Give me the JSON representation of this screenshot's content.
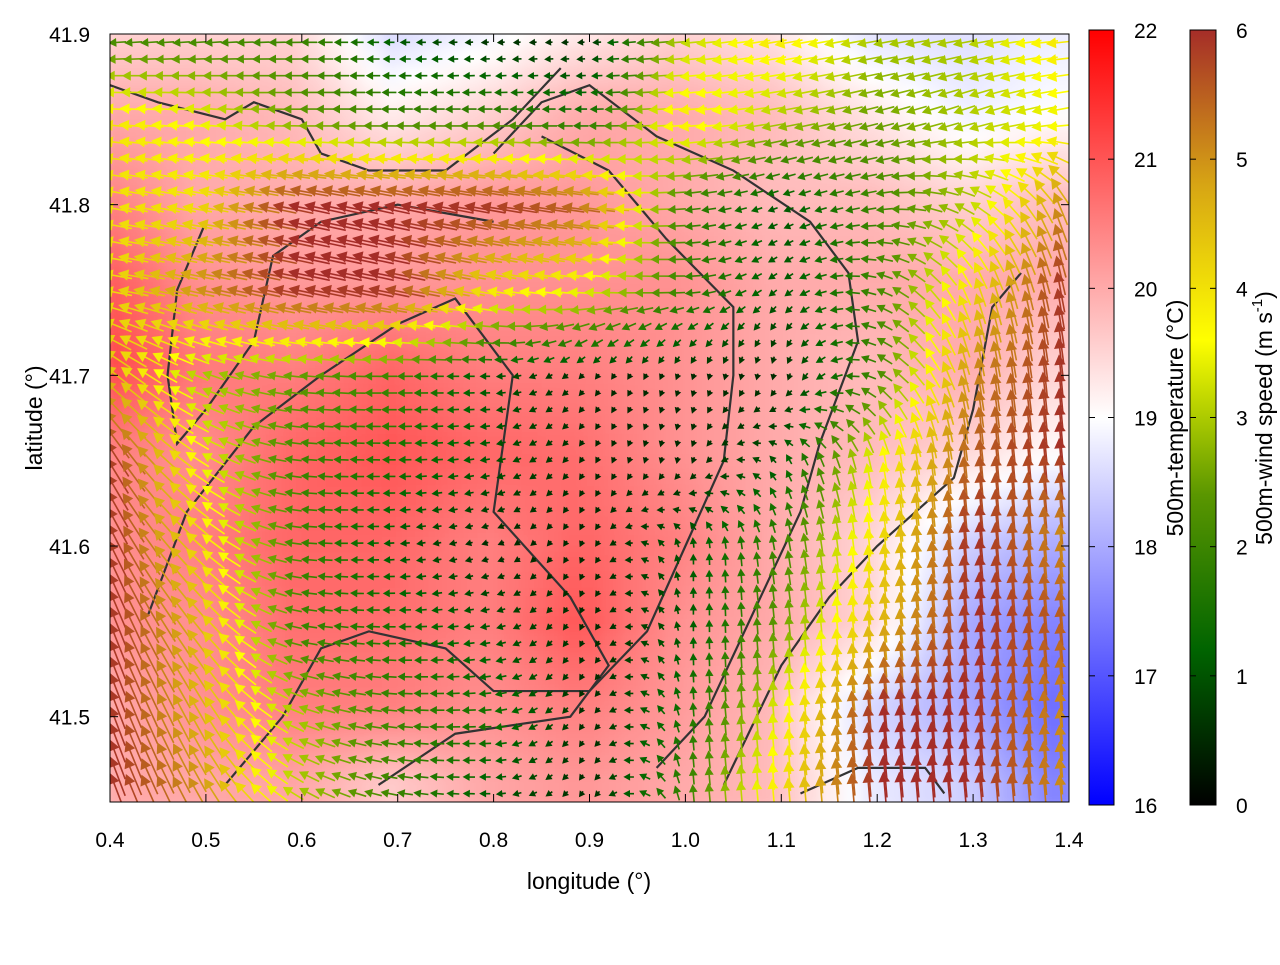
{
  "chart_data": {
    "type": "heatmap",
    "overlay": "vector-field-with-contours",
    "xlabel": "longitude (°)",
    "ylabel": "latitude (°)",
    "xlim": [
      0.4,
      1.4
    ],
    "ylim": [
      41.45,
      41.9
    ],
    "xticks": [
      "0.4",
      "0.5",
      "0.6",
      "0.7",
      "0.8",
      "0.9",
      "1.0",
      "1.1",
      "1.2",
      "1.3",
      "1.4"
    ],
    "yticks": [
      "41.5",
      "41.6",
      "41.7",
      "41.8",
      "41.9"
    ],
    "grid_lon": [
      0.4,
      0.5,
      0.6,
      0.7,
      0.8,
      0.9,
      1.0,
      1.1,
      1.2,
      1.3,
      1.4
    ],
    "grid_lat": [
      41.9,
      41.85,
      41.8,
      41.75,
      41.7,
      41.65,
      41.6,
      41.55,
      41.5,
      41.45
    ],
    "temperature": [
      [
        19.5,
        19.5,
        19.5,
        18.5,
        18.8,
        19.2,
        19.5,
        19.3,
        18.6,
        18.6,
        18.8
      ],
      [
        20.0,
        20.0,
        19.8,
        19.2,
        19.5,
        20.0,
        20.0,
        19.8,
        19.3,
        18.8,
        19.0
      ],
      [
        20.5,
        20.0,
        20.0,
        20.0,
        20.2,
        20.2,
        20.0,
        19.8,
        19.8,
        19.5,
        19.8
      ],
      [
        21.0,
        20.3,
        20.2,
        20.2,
        20.3,
        20.3,
        20.3,
        20.0,
        20.0,
        20.0,
        20.0
      ],
      [
        21.2,
        20.6,
        20.5,
        20.8,
        20.5,
        20.5,
        20.3,
        20.0,
        19.8,
        20.0,
        19.5
      ],
      [
        20.5,
        20.3,
        20.8,
        21.0,
        20.8,
        20.7,
        20.3,
        20.0,
        19.8,
        19.5,
        19.0
      ],
      [
        20.3,
        20.5,
        20.8,
        20.8,
        20.5,
        20.8,
        20.5,
        20.0,
        19.5,
        18.5,
        18.0
      ],
      [
        20.3,
        20.3,
        20.7,
        20.7,
        20.5,
        21.0,
        20.3,
        20.0,
        19.5,
        18.0,
        17.5
      ],
      [
        20.0,
        20.3,
        20.5,
        20.5,
        20.3,
        20.5,
        20.2,
        19.8,
        18.5,
        18.0,
        17.2
      ],
      [
        20.0,
        20.0,
        20.0,
        19.5,
        20.0,
        20.2,
        20.0,
        19.8,
        18.8,
        18.5,
        17.5
      ]
    ],
    "wind_speed": [
      [
        2,
        2,
        2,
        1,
        0.5,
        0.5,
        3,
        4,
        3,
        3,
        4
      ],
      [
        4,
        3.5,
        2.5,
        2,
        2,
        1.5,
        4,
        3,
        2.5,
        3,
        3.5
      ],
      [
        4,
        4,
        6,
        6,
        6,
        5.5,
        2,
        1,
        2,
        3,
        5
      ],
      [
        4,
        5,
        6,
        6,
        4,
        3.5,
        2,
        1,
        2,
        4,
        6
      ],
      [
        4.5,
        3,
        2.5,
        2,
        1,
        0.5,
        0.5,
        0.5,
        2,
        5,
        6
      ],
      [
        6,
        3.5,
        2,
        1.5,
        1,
        0.5,
        0.5,
        1,
        3.5,
        5.5,
        6
      ],
      [
        6,
        4,
        2,
        1,
        0.5,
        0.5,
        1,
        2,
        4,
        6,
        5
      ],
      [
        6,
        4.5,
        2,
        1.5,
        1,
        0.5,
        1,
        2.5,
        4.5,
        6,
        5.5
      ],
      [
        6,
        4.5,
        3,
        2,
        1.5,
        0.5,
        1.5,
        3.5,
        6,
        6,
        5
      ],
      [
        6,
        5,
        3,
        2,
        1,
        0.5,
        2,
        4,
        6,
        6,
        5
      ]
    ],
    "wind_direction_deg": [
      [
        185,
        185,
        180,
        180,
        185,
        185,
        185,
        190,
        190,
        190,
        185
      ],
      [
        175,
        175,
        180,
        180,
        180,
        180,
        185,
        190,
        195,
        200,
        190
      ],
      [
        170,
        170,
        168,
        168,
        170,
        172,
        185,
        200,
        190,
        150,
        110
      ],
      [
        170,
        168,
        168,
        168,
        170,
        175,
        180,
        220,
        160,
        110,
        100
      ],
      [
        140,
        160,
        175,
        180,
        180,
        230,
        250,
        260,
        150,
        100,
        95
      ],
      [
        120,
        150,
        175,
        180,
        190,
        240,
        260,
        120,
        100,
        95,
        95
      ],
      [
        115,
        140,
        175,
        185,
        200,
        250,
        90,
        100,
        95,
        95,
        95
      ],
      [
        110,
        130,
        170,
        180,
        190,
        250,
        90,
        95,
        95,
        95,
        95
      ],
      [
        110,
        120,
        160,
        175,
        185,
        240,
        95,
        95,
        95,
        95,
        95
      ],
      [
        110,
        120,
        150,
        170,
        180,
        240,
        95,
        95,
        95,
        95,
        95
      ]
    ],
    "contours": [
      [
        [
          0.44,
          41.56
        ],
        [
          0.48,
          41.62
        ],
        [
          0.55,
          41.67
        ],
        [
          0.62,
          41.7
        ],
        [
          0.7,
          41.73
        ],
        [
          0.76,
          41.745
        ],
        [
          0.82,
          41.7
        ],
        [
          0.8,
          41.62
        ],
        [
          0.88,
          41.57
        ],
        [
          0.92,
          41.53
        ],
        [
          0.88,
          41.5
        ],
        [
          0.76,
          41.49
        ],
        [
          0.68,
          41.46
        ]
      ],
      [
        [
          0.8,
          41.83
        ],
        [
          0.85,
          41.86
        ],
        [
          0.9,
          41.87
        ],
        [
          0.97,
          41.84
        ],
        [
          1.05,
          41.82
        ],
        [
          1.13,
          41.79
        ],
        [
          1.17,
          41.76
        ],
        [
          1.18,
          41.72
        ],
        [
          1.14,
          41.66
        ],
        [
          1.12,
          41.62
        ],
        [
          1.07,
          41.56
        ],
        [
          1.02,
          41.5
        ],
        [
          0.97,
          41.47
        ]
      ],
      [
        [
          0.52,
          41.46
        ],
        [
          0.58,
          41.5
        ],
        [
          0.62,
          41.54
        ],
        [
          0.67,
          41.55
        ],
        [
          0.75,
          41.54
        ],
        [
          0.8,
          41.515
        ],
        [
          0.9,
          41.515
        ],
        [
          0.96,
          41.55
        ],
        [
          1.0,
          41.6
        ],
        [
          1.04,
          41.65
        ],
        [
          1.05,
          41.7
        ],
        [
          1.05,
          41.74
        ],
        [
          0.98,
          41.78
        ],
        [
          0.92,
          41.82
        ],
        [
          0.85,
          41.84
        ]
      ],
      [
        [
          1.12,
          41.455
        ],
        [
          1.18,
          41.47
        ],
        [
          1.25,
          41.47
        ],
        [
          1.27,
          41.455
        ]
      ],
      [
        [
          1.04,
          41.46
        ],
        [
          1.1,
          41.53
        ],
        [
          1.15,
          41.57
        ],
        [
          1.2,
          41.6
        ],
        [
          1.28,
          41.64
        ],
        [
          1.3,
          41.68
        ],
        [
          1.32,
          41.74
        ],
        [
          1.35,
          41.76
        ]
      ],
      [
        [
          0.4,
          41.87
        ],
        [
          0.45,
          41.86
        ],
        [
          0.52,
          41.85
        ],
        [
          0.55,
          41.86
        ],
        [
          0.6,
          41.85
        ],
        [
          0.62,
          41.83
        ],
        [
          0.67,
          41.82
        ],
        [
          0.75,
          41.82
        ],
        [
          0.82,
          41.85
        ],
        [
          0.87,
          41.88
        ]
      ],
      [
        [
          0.5,
          41.79
        ],
        [
          0.47,
          41.75
        ],
        [
          0.46,
          41.7
        ],
        [
          0.47,
          41.66
        ],
        [
          0.5,
          41.68
        ],
        [
          0.55,
          41.72
        ],
        [
          0.57,
          41.77
        ],
        [
          0.62,
          41.79
        ],
        [
          0.7,
          41.8
        ],
        [
          0.8,
          41.79
        ]
      ]
    ],
    "colorbars": [
      {
        "label": "500m-temperature (°C)",
        "range": [
          16,
          22
        ],
        "ticks": [
          "16",
          "17",
          "18",
          "19",
          "20",
          "21",
          "22"
        ],
        "colors": [
          "#0000ff",
          "#ffffff",
          "#ff0000"
        ]
      },
      {
        "label_main": "500m-wind speed (m s",
        "label_sup": "-1",
        "label_end": ")",
        "range": [
          0,
          6
        ],
        "ticks": [
          "0",
          "1",
          "2",
          "3",
          "4",
          "5",
          "6"
        ],
        "colors": [
          "#000000",
          "#006400",
          "#5a9600",
          "#ffff00",
          "#d7a514",
          "#a52d28"
        ]
      }
    ],
    "contour_color": "#333333",
    "grid": false
  }
}
